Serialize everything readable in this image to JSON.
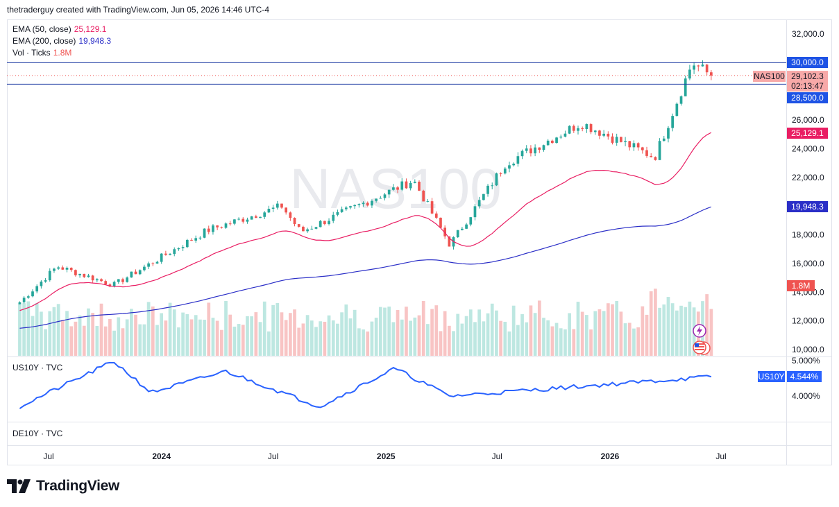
{
  "header": {
    "credit": "thetraderguy created with TradingView.com, Jun 05, 2026 14:46 UTC-4"
  },
  "watermark": "NAS100",
  "legend": {
    "ema50": {
      "label": "EMA (50, close)",
      "value": "25,129.1",
      "color": "#e91e63"
    },
    "ema200": {
      "label": "EMA (200, close)",
      "value": "19,948.3",
      "color": "#2a2ec7"
    },
    "vol": {
      "label": "Vol · Ticks",
      "value": "1.8M",
      "color": "#ef5350"
    }
  },
  "brand": {
    "name": "TradingView"
  },
  "colors": {
    "up": "#26a69a",
    "down": "#ef5350",
    "volUp": "#bde7e1",
    "volDown": "#f8c4c4",
    "ema50": "#e91e63",
    "ema200": "#2a2ec7",
    "hline": "#1e3ba3",
    "us10y": "#2962ff"
  },
  "chart_data": [
    {
      "type": "candlestick",
      "symbol": "NAS100",
      "timeframe": "weekly",
      "ylim": [
        9600,
        33000
      ],
      "y_ticks": [
        "32,000.0",
        "26,000.0",
        "24,000.0",
        "22,000.0",
        "18,000.0",
        "16,000.0",
        "14,000.0",
        "12,000.0",
        "10,000.0"
      ],
      "x_ticks": [
        "Jul",
        "2024",
        "Jul",
        "2025",
        "Jul",
        "2026",
        "Jul"
      ],
      "horizontal_lines": [
        {
          "value": 30000,
          "label": "30,000.0"
        },
        {
          "value": 28500,
          "label": "28,500.0"
        }
      ],
      "last_price": {
        "value": 29102.3,
        "label": "29,102.3",
        "countdown": "02:13:47",
        "symbol": "NAS100"
      },
      "ema50_last": {
        "value": 25129.1,
        "label": "25,129.1"
      },
      "ema200_last": {
        "value": 19948.3,
        "label": "19,948.3"
      },
      "volume_last": {
        "label": "1.8M"
      },
      "key_closes": [
        {
          "date": "2023-05",
          "value": 13300
        },
        {
          "date": "2023-07",
          "value": 15800
        },
        {
          "date": "2023-10",
          "value": 14500
        },
        {
          "date": "2024-03",
          "value": 18300
        },
        {
          "date": "2024-07",
          "value": 20000
        },
        {
          "date": "2024-08",
          "value": 18200
        },
        {
          "date": "2025-02",
          "value": 21800
        },
        {
          "date": "2025-04",
          "value": 17300
        },
        {
          "date": "2025-07",
          "value": 23000
        },
        {
          "date": "2025-11",
          "value": 25800
        },
        {
          "date": "2026-03",
          "value": 23400
        },
        {
          "date": "2026-05",
          "value": 30000
        },
        {
          "date": "2026-06",
          "value": 29102.3
        }
      ]
    },
    {
      "type": "line",
      "title": "US10Y · TVC",
      "ylim": [
        3.6,
        5.05
      ],
      "y_ticks": [
        "5.000%",
        "4.000%"
      ],
      "last": {
        "value": 4.544,
        "label": "4.544%",
        "tag": "US10Y"
      },
      "key_values": [
        {
          "date": "2023-05",
          "value": 3.7
        },
        {
          "date": "2023-10",
          "value": 4.98
        },
        {
          "date": "2023-12",
          "value": 4.1
        },
        {
          "date": "2024-04",
          "value": 4.7
        },
        {
          "date": "2024-09",
          "value": 3.7
        },
        {
          "date": "2025-01",
          "value": 4.78
        },
        {
          "date": "2025-04",
          "value": 4.0
        },
        {
          "date": "2026-06",
          "value": 4.544
        }
      ]
    },
    {
      "type": "line",
      "title": "DE10Y · TVC"
    }
  ]
}
